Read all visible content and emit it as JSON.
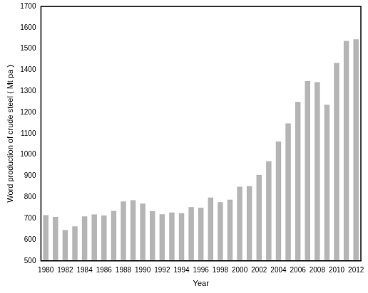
{
  "chart_data": {
    "type": "bar",
    "y_label": "Word production of crude steel ( Mt pa )",
    "x_label": "Year",
    "categories": [
      "1980",
      null,
      "1982",
      null,
      "1984",
      null,
      "1986",
      null,
      "1988",
      null,
      "1990",
      null,
      "1992",
      null,
      "1994",
      null,
      "1996",
      null,
      "1998",
      null,
      "2000",
      null,
      "2002",
      null,
      "2004",
      null,
      "2006",
      null,
      "2008",
      null,
      "2010",
      null,
      "2012"
    ],
    "values": [
      716,
      707,
      645,
      663,
      710,
      719,
      714,
      736,
      780,
      786,
      770,
      734,
      720,
      728,
      725,
      753,
      751,
      799,
      777,
      789,
      850,
      852,
      905,
      970,
      1063,
      1148,
      1250,
      1348,
      1343,
      1236,
      1433,
      1537,
      1545
    ],
    "color": "#b5b5b5",
    "ylim": [
      500,
      1700
    ],
    "yticks": [
      500,
      600,
      700,
      800,
      900,
      1000,
      1100,
      1200,
      1300,
      1400,
      1500,
      1600,
      1700
    ],
    "grid": false
  }
}
